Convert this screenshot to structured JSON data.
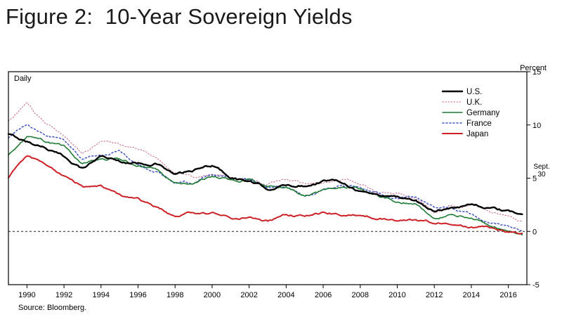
{
  "figure": {
    "title": "Figure 2:  10-Year Sovereign Yields",
    "daily_label": "Daily",
    "unit_label": "Percent",
    "annotation_line1": "Sept.",
    "annotation_line2": "30",
    "source": "Source:  Bloomberg."
  },
  "chart_data": {
    "type": "line",
    "title": "10-Year Sovereign Yields",
    "xlabel": "",
    "ylabel": "Percent",
    "frequency": "Daily",
    "xlim": [
      1989,
      2017
    ],
    "ylim": [
      -5,
      15
    ],
    "yticks": [
      -5,
      0,
      5,
      10,
      15
    ],
    "xticks": [
      1990,
      1992,
      1994,
      1996,
      1998,
      2000,
      2002,
      2004,
      2006,
      2008,
      2010,
      2012,
      2014,
      2016
    ],
    "grid": false,
    "zero_line_dashed": true,
    "legend_position": "top-right",
    "last_observation": "Sept. 30",
    "x": [
      1989,
      1990,
      1991,
      1992,
      1993,
      1994,
      1995,
      1996,
      1997,
      1998,
      1999,
      2000,
      2001,
      2002,
      2003,
      2004,
      2005,
      2006,
      2007,
      2008,
      2009,
      2010,
      2011,
      2012,
      2013,
      2014,
      2015,
      2016,
      2016.75
    ],
    "series": [
      {
        "name": "U.S.",
        "color": "#000000",
        "width": 2.4,
        "dash": "",
        "values": [
          9.1,
          8.4,
          7.9,
          7.0,
          5.9,
          7.1,
          6.6,
          6.4,
          6.4,
          5.3,
          5.7,
          6.2,
          5.1,
          4.7,
          4.0,
          4.3,
          4.3,
          4.8,
          4.7,
          3.8,
          3.4,
          3.3,
          2.9,
          1.8,
          2.3,
          2.6,
          2.2,
          1.8,
          1.6
        ]
      },
      {
        "name": "U.K.",
        "color": "#c4618c",
        "width": 1.0,
        "dash": "1.5 2.5",
        "values": [
          10.3,
          12.0,
          10.1,
          9.1,
          7.4,
          8.5,
          8.2,
          7.8,
          7.1,
          5.6,
          5.1,
          5.3,
          4.9,
          4.9,
          4.5,
          4.9,
          4.4,
          4.5,
          5.0,
          4.5,
          3.6,
          3.6,
          3.1,
          1.9,
          2.4,
          2.6,
          1.9,
          1.4,
          0.8
        ]
      },
      {
        "name": "Germany",
        "color": "#1d7a33",
        "width": 1.6,
        "dash": "",
        "values": [
          7.2,
          8.8,
          8.4,
          7.9,
          6.3,
          6.9,
          6.8,
          6.2,
          5.7,
          4.6,
          4.4,
          5.2,
          4.8,
          4.8,
          4.1,
          4.1,
          3.4,
          3.8,
          4.2,
          4.0,
          3.2,
          2.8,
          2.7,
          1.4,
          1.6,
          1.3,
          0.6,
          0.2,
          -0.1
        ]
      },
      {
        "name": "France",
        "color": "#4253c4",
        "width": 1.5,
        "dash": "2 3",
        "values": [
          8.8,
          9.9,
          9.0,
          8.6,
          6.8,
          7.2,
          7.5,
          6.3,
          5.6,
          4.7,
          4.6,
          5.4,
          4.9,
          4.9,
          4.1,
          4.1,
          3.4,
          3.8,
          4.3,
          4.2,
          3.6,
          3.1,
          3.3,
          2.2,
          2.2,
          1.7,
          0.9,
          0.5,
          0.2
        ]
      },
      {
        "name": "Japan",
        "color": "#cc2027",
        "width": 2.0,
        "dash": "",
        "values": [
          5.1,
          7.0,
          6.3,
          5.2,
          4.2,
          4.2,
          3.3,
          3.0,
          2.3,
          1.3,
          1.7,
          1.7,
          1.3,
          1.3,
          0.9,
          1.5,
          1.4,
          1.7,
          1.6,
          1.5,
          1.3,
          1.1,
          1.1,
          0.8,
          0.7,
          0.5,
          0.35,
          -0.05,
          -0.08
        ]
      }
    ]
  }
}
